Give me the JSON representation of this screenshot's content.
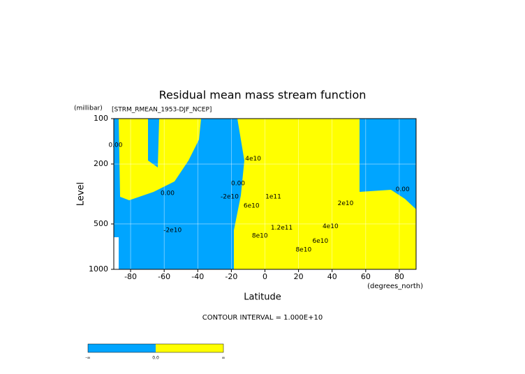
{
  "chart_data": {
    "type": "contour",
    "title": "Residual mean mass stream function",
    "subtitle": "[STRM_RMEAN_1953-DJF_NCEP]",
    "x_label": "Latitude",
    "x_units": "(degrees_north)",
    "y_label": "Level",
    "y_units": "(millibar)",
    "xlim": [
      -90,
      90
    ],
    "xticks": [
      -80,
      -60,
      -40,
      -20,
      0,
      20,
      40,
      60,
      80
    ],
    "ylim": [
      1000,
      100
    ],
    "yticks": [
      100,
      200,
      500,
      1000
    ],
    "y_log": true,
    "grid": true,
    "negative_color": "#00a5ff",
    "positive_color": "#ffff00",
    "contour_labels": [
      {
        "value": 0,
        "label": "0.00",
        "x": -89,
        "y": 150
      },
      {
        "value": 0,
        "label": "0.00",
        "x": -58,
        "y": 313
      },
      {
        "value": -20000000000,
        "label": "-2e10",
        "x": -55,
        "y": 550
      },
      {
        "value": -20000000000,
        "label": "-2e10",
        "x": -21,
        "y": 330
      },
      {
        "value": 0,
        "label": "0.00",
        "x": -16,
        "y": 270
      },
      {
        "value": 40000000000,
        "label": "4e10",
        "x": -7,
        "y": 185
      },
      {
        "value": 60000000000,
        "label": "6e10",
        "x": -8,
        "y": 380
      },
      {
        "value": 100000000000,
        "label": "1e11",
        "x": 5,
        "y": 330
      },
      {
        "value": 80000000000,
        "label": "8e10",
        "x": -3,
        "y": 600
      },
      {
        "value": 120000000000,
        "label": "1.2e11",
        "x": 10,
        "y": 530
      },
      {
        "value": 80000000000,
        "label": "8e10",
        "x": 23,
        "y": 740
      },
      {
        "value": 60000000000,
        "label": "6e10",
        "x": 33,
        "y": 650
      },
      {
        "value": 40000000000,
        "label": "4e10",
        "x": 39,
        "y": 520
      },
      {
        "value": 20000000000,
        "label": "2e10",
        "x": 48,
        "y": 365
      },
      {
        "value": 0,
        "label": "0.00",
        "x": 82,
        "y": 295
      }
    ],
    "footer": "CONTOUR INTERVAL = 1.000E+10",
    "colorbar_labels": [
      "-∞",
      "0.0",
      "∞"
    ]
  }
}
